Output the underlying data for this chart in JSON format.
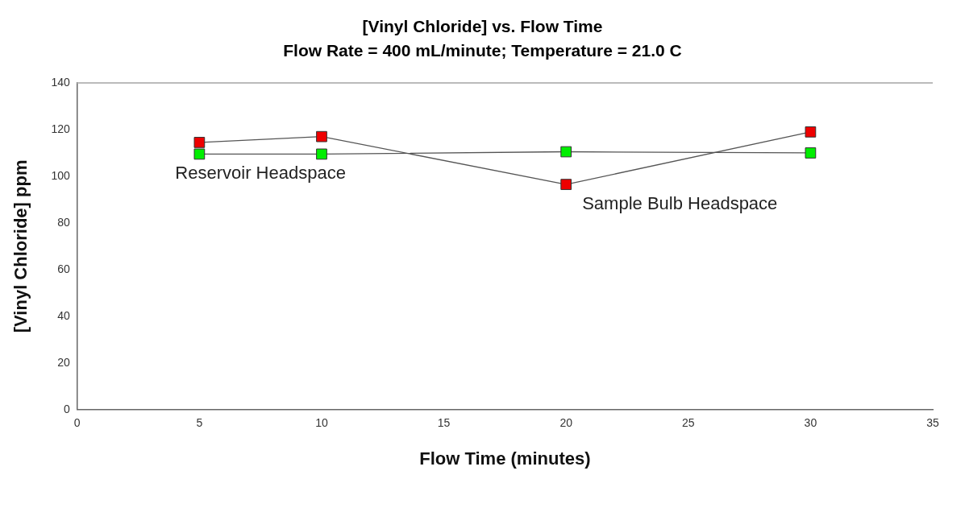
{
  "chart_data": {
    "type": "line",
    "title": "[Vinyl Chloride] vs. Flow Time",
    "subtitle": "Flow Rate = 400 mL/minute; Temperature = 21.0 C",
    "xlabel": "Flow Time (minutes)",
    "ylabel": "[Vinyl Chloride] ppm",
    "x": [
      5,
      10,
      20,
      30
    ],
    "series": [
      {
        "name": "Reservoir Headspace",
        "color": "#00ee00",
        "values": [
          109.5,
          109.5,
          110.5,
          110
        ]
      },
      {
        "name": "Sample Bulb Headspace",
        "color": "#ee0000",
        "values": [
          114.5,
          117,
          96.5,
          119
        ]
      }
    ],
    "xlim": [
      0,
      35
    ],
    "xticks": [
      0,
      5,
      10,
      15,
      20,
      25,
      30,
      35
    ],
    "ylim": [
      0,
      140
    ],
    "yticks": [
      0,
      20,
      40,
      60,
      80,
      100,
      120,
      140
    ],
    "grid": false,
    "legend": false,
    "marker": "square",
    "line_style": "solid"
  }
}
